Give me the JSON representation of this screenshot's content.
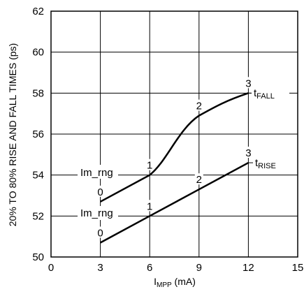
{
  "chart_data": {
    "type": "line",
    "xlabel": "I",
    "xlabel_sub": "MPP",
    "xlabel_unit": " (mA)",
    "ylabel": "20% TO 80% RISE AND FALL TIMES (ps)",
    "xlim": [
      0,
      15
    ],
    "ylim": [
      50,
      62
    ],
    "x_ticks": [
      "0",
      "3",
      "6",
      "9",
      "12",
      "15"
    ],
    "y_ticks": [
      "50",
      "52",
      "54",
      "56",
      "58",
      "60",
      "62"
    ],
    "grid": true,
    "series": [
      {
        "name": "t",
        "name_sub": "FALL",
        "x": [
          3,
          6,
          9,
          12
        ],
        "y": [
          52.7,
          54.0,
          56.9,
          58.0
        ],
        "point_labels": [
          "0",
          "1",
          "2",
          "3"
        ]
      },
      {
        "name": "t",
        "name_sub": "RISE",
        "x": [
          3,
          6,
          9,
          12
        ],
        "y": [
          50.7,
          52.0,
          53.3,
          54.6
        ],
        "point_labels": [
          "0",
          "1",
          "2",
          "3"
        ]
      }
    ],
    "annotations": [
      "Im_rng",
      "Im_rng"
    ]
  }
}
